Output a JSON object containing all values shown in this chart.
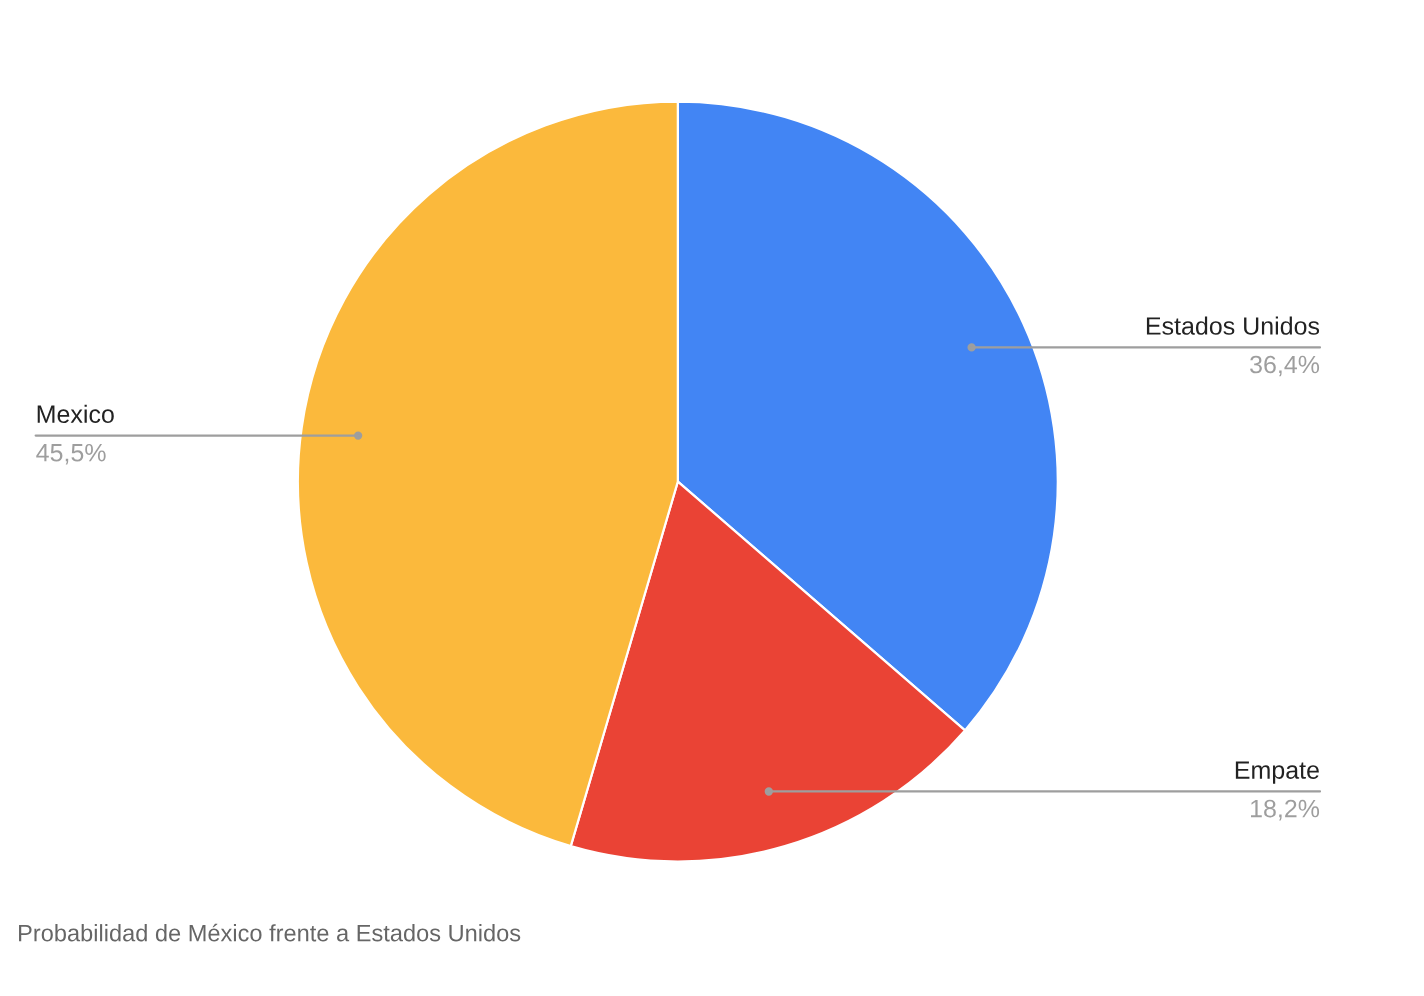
{
  "chart_data": {
    "type": "pie",
    "categories": [
      "Estados Unidos",
      "Empate",
      "Mexico"
    ],
    "values": [
      36.4,
      18.2,
      45.5
    ],
    "value_labels": [
      "36,4%",
      "18,2%",
      "45,5%"
    ],
    "colors": [
      "#4285f4",
      "#ea4335",
      "#fbb93c"
    ],
    "legend": false,
    "annotations": [
      "Probabilidad de México frente a Estados Unidos"
    ]
  }
}
